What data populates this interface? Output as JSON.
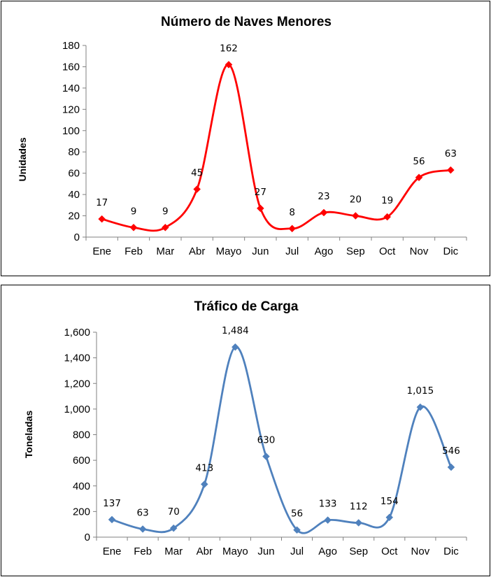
{
  "chart_data": [
    {
      "type": "line",
      "title": "Número de Naves Menores",
      "xlabel": "",
      "ylabel": "Unidades",
      "categories": [
        "Ene",
        "Feb",
        "Mar",
        "Abr",
        "Mayo",
        "Jun",
        "Jul",
        "Ago",
        "Sep",
        "Oct",
        "Nov",
        "Dic"
      ],
      "series": [
        {
          "values": [
            17,
            9,
            9,
            45,
            162,
            27,
            8,
            23,
            20,
            19,
            56,
            63
          ],
          "color": "#ff0000",
          "marker": "diamond"
        }
      ],
      "data_labels": [
        "17",
        "9",
        "9",
        "45",
        "162",
        "27",
        "8",
        "23",
        "20",
        "19",
        "56",
        "63"
      ],
      "ylim": [
        0,
        180
      ],
      "yticks": [
        0,
        20,
        40,
        60,
        80,
        100,
        120,
        140,
        160,
        180
      ],
      "ytick_labels": [
        "0",
        "20",
        "40",
        "60",
        "80",
        "100",
        "120",
        "140",
        "160",
        "180"
      ],
      "smooth": true,
      "grid": false,
      "legend": "none"
    },
    {
      "type": "line",
      "title": "Tráfico de Carga",
      "xlabel": "",
      "ylabel": "Toneladas",
      "categories": [
        "Ene",
        "Feb",
        "Mar",
        "Abr",
        "Mayo",
        "Jun",
        "Jul",
        "Ago",
        "Sep",
        "Oct",
        "Nov",
        "Dic"
      ],
      "series": [
        {
          "values": [
            137,
            63,
            70,
            413,
            1484,
            630,
            56,
            133,
            112,
            154,
            1015,
            546
          ],
          "color": "#4f81bd",
          "marker": "diamond"
        }
      ],
      "data_labels": [
        "137",
        "63",
        "70",
        "413",
        "1,484",
        "630",
        "56",
        "133",
        "112",
        "154",
        "1,015",
        "546"
      ],
      "ylim": [
        0,
        1600
      ],
      "yticks": [
        0,
        200,
        400,
        600,
        800,
        1000,
        1200,
        1400,
        1600
      ],
      "ytick_labels": [
        "0",
        "200",
        "400",
        "600",
        "800",
        "1,000",
        "1,200",
        "1,400",
        "1,600"
      ],
      "smooth": true,
      "grid": false,
      "legend": "none"
    }
  ]
}
